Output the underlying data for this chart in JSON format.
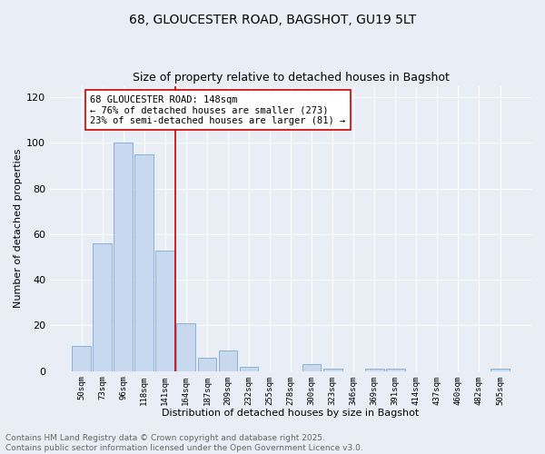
{
  "title1": "68, GLOUCESTER ROAD, BAGSHOT, GU19 5LT",
  "title2": "Size of property relative to detached houses in Bagshot",
  "xlabel": "Distribution of detached houses by size in Bagshot",
  "ylabel": "Number of detached properties",
  "bar_labels": [
    "50sqm",
    "73sqm",
    "96sqm",
    "118sqm",
    "141sqm",
    "164sqm",
    "187sqm",
    "209sqm",
    "232sqm",
    "255sqm",
    "278sqm",
    "300sqm",
    "323sqm",
    "346sqm",
    "369sqm",
    "391sqm",
    "414sqm",
    "437sqm",
    "460sqm",
    "482sqm",
    "505sqm"
  ],
  "bar_values": [
    11,
    56,
    100,
    95,
    53,
    21,
    6,
    9,
    2,
    0,
    0,
    3,
    1,
    0,
    1,
    1,
    0,
    0,
    0,
    0,
    1
  ],
  "bar_color": "#c8d9ef",
  "bar_edge_color": "#7aaad4",
  "vline_x": 4.5,
  "vline_color": "#cc0000",
  "annotation_text": "68 GLOUCESTER ROAD: 148sqm\n← 76% of detached houses are smaller (273)\n23% of semi-detached houses are larger (81) →",
  "annotation_box_color": "#ffffff",
  "annotation_box_edge": "#cc0000",
  "ylim": [
    0,
    125
  ],
  "yticks": [
    0,
    20,
    40,
    60,
    80,
    100,
    120
  ],
  "background_color": "#e8edf6",
  "footer_line1": "Contains HM Land Registry data © Crown copyright and database right 2025.",
  "footer_line2": "Contains public sector information licensed under the Open Government Licence v3.0.",
  "title1_fontsize": 10,
  "title2_fontsize": 9,
  "annotation_fontsize": 7.5,
  "footer_fontsize": 6.5,
  "ylabel_fontsize": 8,
  "xlabel_fontsize": 8
}
